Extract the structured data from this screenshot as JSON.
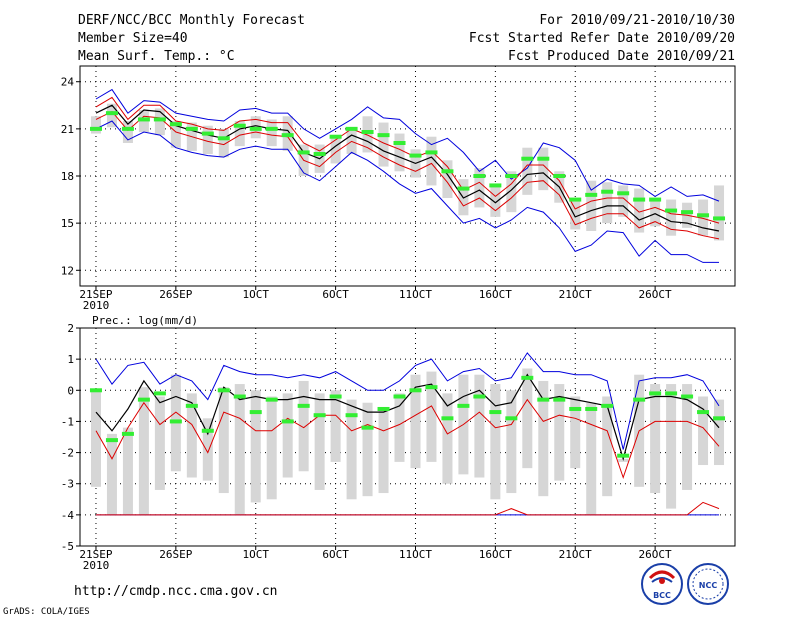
{
  "header": {
    "title": "DERF/NCC/BCC Monthly Forecast",
    "member_size": "Member Size=40",
    "variable": "Mean Surf. Temp.: °C",
    "period": "For 2010/09/21-2010/10/30",
    "refer_date": "Fcst Started Refer Date 2010/09/20",
    "produced_date": "Fcst Produced Date 2010/09/21"
  },
  "footer": {
    "url": "http://cmdp.ncc.cma.gov.cn",
    "credit": "GrADS: COLA/IGES",
    "logo_left_text": "BCC",
    "logo_right_text": "NCC"
  },
  "colors": {
    "mean": "#000000",
    "spread_upper": "#0000dd",
    "spread_inner": "#dd0000",
    "box": "#d6d6d6",
    "member": "#33ee33"
  },
  "chart_data": [
    {
      "type": "line",
      "title": "Mean Surf. Temp.: °C",
      "xlabel": "",
      "ylabel": "°C",
      "ylim": [
        11,
        25
      ],
      "yticks": [
        12,
        15,
        18,
        21,
        24
      ],
      "x_ticks": [
        {
          "day": 1,
          "label": "21SEP",
          "sub": "2010"
        },
        {
          "day": 6,
          "label": "26SEP",
          "sub": ""
        },
        {
          "day": 11,
          "label": "1OCT",
          "sub": ""
        },
        {
          "day": 16,
          "label": "6OCT",
          "sub": ""
        },
        {
          "day": 21,
          "label": "11OCT",
          "sub": ""
        },
        {
          "day": 26,
          "label": "16OCT",
          "sub": ""
        },
        {
          "day": 31,
          "label": "21OCT",
          "sub": ""
        },
        {
          "day": 36,
          "label": "26OCT",
          "sub": ""
        }
      ],
      "x": [
        1,
        2,
        3,
        4,
        5,
        6,
        7,
        8,
        9,
        10,
        11,
        12,
        13,
        14,
        15,
        16,
        17,
        18,
        19,
        20,
        21,
        22,
        23,
        24,
        25,
        26,
        27,
        28,
        29,
        30,
        31,
        32,
        33,
        34,
        35,
        36,
        37,
        38,
        39,
        40
      ],
      "series": [
        {
          "name": "max",
          "values": [
            22.9,
            23.5,
            22.0,
            22.8,
            22.7,
            22.0,
            21.8,
            21.6,
            21.5,
            22.2,
            22.3,
            22.0,
            22.0,
            21.0,
            20.4,
            21.0,
            21.6,
            22.4,
            21.7,
            21.6,
            20.7,
            20.0,
            20.4,
            19.5,
            18.3,
            19.0,
            17.8,
            18.5,
            20.1,
            19.8,
            19.0,
            17.1,
            17.8,
            17.5,
            17.4,
            16.7,
            17.3,
            16.7,
            16.8,
            16.4
          ]
        },
        {
          "name": "mean_plus_sd",
          "values": [
            22.4,
            23.0,
            21.6,
            22.5,
            22.5,
            21.5,
            21.3,
            21.0,
            20.9,
            21.5,
            21.6,
            21.4,
            21.4,
            20.1,
            19.6,
            20.3,
            21.0,
            20.6,
            20.1,
            19.7,
            19.2,
            19.6,
            18.6,
            17.1,
            17.6,
            16.7,
            17.5,
            18.7,
            18.7,
            17.7,
            15.9,
            16.4,
            16.6,
            16.6,
            15.7,
            16.0,
            15.6,
            15.5,
            15.3,
            15.0
          ]
        },
        {
          "name": "mean",
          "values": [
            22.0,
            22.5,
            21.3,
            22.2,
            22.1,
            21.2,
            20.9,
            20.6,
            20.4,
            21.0,
            21.2,
            21.0,
            20.9,
            19.5,
            19.1,
            19.9,
            20.6,
            20.2,
            19.6,
            19.2,
            18.8,
            19.2,
            18.1,
            16.6,
            17.1,
            16.3,
            17.1,
            18.1,
            18.2,
            17.3,
            15.4,
            15.8,
            16.1,
            16.1,
            15.2,
            15.6,
            15.1,
            15.0,
            14.7,
            14.5
          ]
        },
        {
          "name": "mean_minus_sd",
          "values": [
            21.6,
            22.1,
            20.9,
            21.8,
            21.7,
            20.8,
            20.5,
            20.2,
            20.0,
            20.6,
            20.8,
            20.6,
            20.5,
            19.0,
            18.6,
            19.5,
            20.2,
            19.8,
            19.2,
            18.7,
            18.3,
            18.8,
            17.6,
            16.1,
            16.6,
            15.8,
            16.6,
            17.6,
            17.7,
            16.8,
            14.9,
            15.3,
            15.6,
            15.6,
            14.7,
            15.1,
            14.6,
            14.5,
            14.2,
            14.0
          ]
        },
        {
          "name": "min",
          "values": [
            21.0,
            21.5,
            20.3,
            20.8,
            20.6,
            19.8,
            19.5,
            19.3,
            19.2,
            19.7,
            19.9,
            19.7,
            19.7,
            18.2,
            17.7,
            18.6,
            19.5,
            19.0,
            18.3,
            17.5,
            16.9,
            17.2,
            16.1,
            15.0,
            15.3,
            14.7,
            15.2,
            16.0,
            15.7,
            14.7,
            13.2,
            13.6,
            14.5,
            14.4,
            12.9,
            13.9,
            13.0,
            13.0,
            12.5,
            12.5
          ]
        },
        {
          "name": "box_high",
          "values": [
            21.8,
            22.6,
            21.5,
            22.2,
            22.3,
            21.5,
            21.4,
            21.2,
            21.0,
            21.5,
            21.8,
            21.6,
            21.8,
            20.0,
            20.0,
            20.4,
            21.1,
            21.8,
            21.4,
            20.7,
            19.7,
            20.5,
            19.0,
            17.8,
            18.5,
            17.5,
            18.3,
            19.8,
            19.8,
            18.3,
            16.6,
            17.7,
            17.6,
            17.4,
            17.2,
            16.6,
            16.5,
            16.3,
            16.5,
            17.4
          ]
        },
        {
          "name": "box_low",
          "values": [
            20.7,
            21.1,
            20.1,
            20.8,
            20.6,
            19.8,
            19.6,
            19.4,
            19.2,
            19.9,
            20.4,
            19.9,
            19.6,
            18.0,
            18.2,
            18.8,
            19.4,
            19.5,
            18.6,
            18.3,
            17.9,
            17.4,
            16.6,
            15.5,
            16.0,
            15.4,
            15.7,
            16.8,
            17.1,
            16.3,
            14.6,
            14.5,
            15.0,
            15.4,
            14.4,
            14.8,
            14.2,
            14.7,
            14.2,
            13.9
          ]
        },
        {
          "name": "members_center",
          "values": [
            21.0,
            22.0,
            21.0,
            21.6,
            21.6,
            21.3,
            21.0,
            20.7,
            20.4,
            21.2,
            21.0,
            21.0,
            20.6,
            19.5,
            19.4,
            20.5,
            21.0,
            20.8,
            20.6,
            20.1,
            19.3,
            19.5,
            18.3,
            17.2,
            18.0,
            17.4,
            18.0,
            19.1,
            19.1,
            18.0,
            16.5,
            16.8,
            17.0,
            16.9,
            16.5,
            16.5,
            15.8,
            15.7,
            15.5,
            15.3
          ]
        }
      ]
    },
    {
      "type": "line",
      "title": "Prec.: log(mm/d)",
      "xlabel": "",
      "ylabel": "log(mm/d)",
      "ylim": [
        -5,
        2
      ],
      "yticks": [
        -5,
        -4,
        -3,
        -2,
        -1,
        0,
        1,
        2
      ],
      "x_ticks": [
        {
          "day": 1,
          "label": "21SEP",
          "sub": "2010"
        },
        {
          "day": 6,
          "label": "26SEP",
          "sub": ""
        },
        {
          "day": 11,
          "label": "1OCT",
          "sub": ""
        },
        {
          "day": 16,
          "label": "6OCT",
          "sub": ""
        },
        {
          "day": 21,
          "label": "11OCT",
          "sub": ""
        },
        {
          "day": 26,
          "label": "16OCT",
          "sub": ""
        },
        {
          "day": 31,
          "label": "21OCT",
          "sub": ""
        },
        {
          "day": 36,
          "label": "26OCT",
          "sub": ""
        }
      ],
      "x": [
        1,
        2,
        3,
        4,
        5,
        6,
        7,
        8,
        9,
        10,
        11,
        12,
        13,
        14,
        15,
        16,
        17,
        18,
        19,
        20,
        21,
        22,
        23,
        24,
        25,
        26,
        27,
        28,
        29,
        30,
        31,
        32,
        33,
        34,
        35,
        36,
        37,
        38,
        39,
        40
      ],
      "series": [
        {
          "name": "max",
          "values": [
            1.0,
            0.2,
            0.8,
            0.9,
            0.2,
            0.5,
            0.3,
            -0.3,
            0.8,
            0.6,
            0.5,
            0.5,
            0.4,
            0.5,
            0.4,
            0.6,
            0.3,
            0.0,
            0.0,
            0.3,
            0.8,
            1.0,
            0.3,
            0.6,
            0.7,
            0.3,
            0.4,
            1.2,
            0.6,
            0.6,
            0.5,
            0.5,
            0.3,
            -1.9,
            0.3,
            0.4,
            0.4,
            0.5,
            0.3,
            -0.5
          ]
        },
        {
          "name": "mean",
          "values": [
            -0.7,
            -1.3,
            -0.6,
            0.3,
            -0.4,
            -0.2,
            -0.4,
            -1.4,
            0.1,
            -0.3,
            -0.2,
            -0.3,
            -0.3,
            -0.2,
            -0.3,
            -0.3,
            -0.5,
            -0.7,
            -0.7,
            -0.5,
            0.1,
            0.2,
            -0.5,
            -0.2,
            0.0,
            -0.5,
            -0.4,
            0.5,
            -0.3,
            -0.2,
            -0.3,
            -0.4,
            -0.5,
            -2.2,
            -0.3,
            -0.2,
            -0.2,
            -0.3,
            -0.6,
            -1.2
          ]
        },
        {
          "name": "mean_minus_sd",
          "values": [
            -1.3,
            -2.2,
            -1.2,
            -0.4,
            -1.1,
            -0.7,
            -1.1,
            -2.0,
            -0.7,
            -0.9,
            -1.3,
            -1.3,
            -0.9,
            -1.2,
            -0.8,
            -0.8,
            -1.3,
            -1.1,
            -1.3,
            -1.1,
            -0.8,
            -0.5,
            -1.4,
            -1.1,
            -0.7,
            -1.2,
            -1.1,
            -0.3,
            -1.0,
            -0.8,
            -0.9,
            -1.1,
            -1.3,
            -2.8,
            -1.3,
            -1.0,
            -1.0,
            -1.0,
            -1.2,
            -1.8
          ]
        },
        {
          "name": "lower_red",
          "values": [
            -4.0,
            -4.0,
            -4.0,
            -4.0,
            -4.0,
            -4.0,
            -4.0,
            -4.0,
            -4.0,
            -4.0,
            -4.0,
            -4.0,
            -4.0,
            -4.0,
            -4.0,
            -4.0,
            -4.0,
            -4.0,
            -4.0,
            -4.0,
            -4.0,
            -4.0,
            -4.0,
            -4.0,
            -4.0,
            -4.0,
            -3.8,
            -4.0,
            -4.0,
            -4.0,
            -4.0,
            -4.0,
            -4.0,
            -4.0,
            -4.0,
            -4.0,
            -4.0,
            -4.0,
            -3.6,
            -3.8
          ]
        },
        {
          "name": "lower_blue",
          "values": [
            -4.0,
            -4.0,
            -4.0,
            -4.0,
            -4.0,
            -4.0,
            -4.0,
            -4.0,
            -4.0,
            -4.0,
            -4.0,
            -4.0,
            -4.0,
            -4.0,
            -4.0,
            -4.0,
            -4.0,
            -4.0,
            -4.0,
            -4.0,
            -4.0,
            -4.0,
            -4.0,
            -4.0,
            -4.0,
            -4.0,
            -4.0,
            -4.0,
            -4.0,
            -4.0,
            -4.0,
            -4.0,
            -4.0,
            -4.0,
            -4.0,
            -4.0,
            -4.0,
            -4.0,
            -4.0,
            -4.0
          ]
        },
        {
          "name": "box_high",
          "values": [
            0.0,
            -1.4,
            -1.2,
            0.1,
            -0.2,
            0.5,
            -0.1,
            -0.9,
            0.1,
            0.2,
            0.0,
            -0.2,
            -0.1,
            0.3,
            -0.1,
            0.0,
            -0.3,
            -0.4,
            -0.6,
            -0.1,
            0.5,
            0.6,
            -0.1,
            0.5,
            0.5,
            0.2,
            0.0,
            0.7,
            0.3,
            0.2,
            -0.2,
            -0.4,
            -0.2,
            -2.2,
            0.5,
            0.2,
            0.2,
            0.2,
            -0.2,
            -0.3
          ]
        },
        {
          "name": "box_low",
          "values": [
            -3.1,
            -4.0,
            -4.0,
            -4.0,
            -3.2,
            -2.6,
            -2.8,
            -2.9,
            -3.3,
            -4.0,
            -3.6,
            -3.5,
            -2.8,
            -2.6,
            -3.2,
            -2.3,
            -3.5,
            -3.4,
            -3.3,
            -2.3,
            -2.5,
            -2.3,
            -3.0,
            -2.7,
            -2.8,
            -3.5,
            -3.3,
            -2.5,
            -3.4,
            -2.9,
            -2.5,
            -4.0,
            -3.4,
            -2.3,
            -3.1,
            -3.3,
            -3.8,
            -3.2,
            -2.4,
            -2.4
          ]
        },
        {
          "name": "members_center",
          "values": [
            0.0,
            -1.6,
            -1.4,
            -0.3,
            -0.1,
            -1.0,
            -0.5,
            -1.3,
            0.0,
            -0.2,
            -0.7,
            -0.3,
            -1.0,
            -0.5,
            -0.8,
            -0.2,
            -0.8,
            -1.2,
            -0.6,
            -0.2,
            0.0,
            0.1,
            -0.9,
            -0.5,
            -0.2,
            -0.7,
            -0.9,
            0.4,
            -0.3,
            -0.3,
            -0.6,
            -0.6,
            -0.5,
            -2.1,
            -0.3,
            -0.1,
            -0.1,
            -0.2,
            -0.7,
            -0.9
          ]
        }
      ]
    }
  ]
}
